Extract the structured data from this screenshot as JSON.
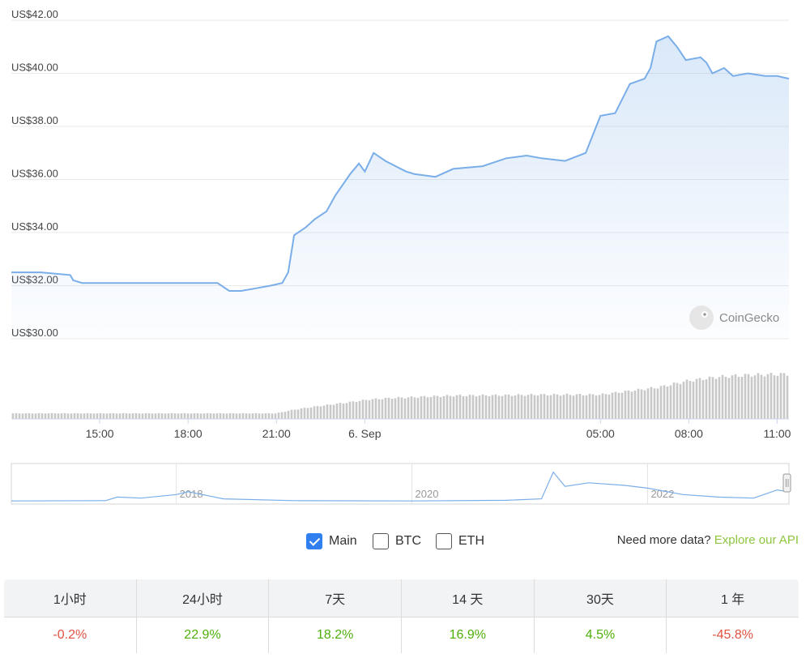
{
  "chart_data": {
    "type": "line",
    "price_axis": {
      "ticks": [
        "US$42.00",
        "US$40.00",
        "US$38.00",
        "US$36.00",
        "US$34.00",
        "US$32.00",
        "US$30.00"
      ],
      "values": [
        42,
        40,
        38,
        36,
        34,
        32,
        30
      ],
      "ylim": [
        30,
        42
      ]
    },
    "time_axis": {
      "labels": [
        "15:00",
        "18:00",
        "21:00",
        "6. Sep",
        "05:00",
        "08:00",
        "11:00"
      ],
      "hours": [
        3,
        6,
        9,
        12,
        20,
        23,
        26
      ],
      "xlim": [
        0,
        26.4
      ]
    },
    "series": [
      {
        "color": "#7aaee8",
        "x": [
          0,
          1,
          2,
          2.1,
          2.4,
          3,
          4,
          5,
          6,
          7,
          7.4,
          7.8,
          8.3,
          8.8,
          9.2,
          9.4,
          9.6,
          10,
          10.3,
          10.7,
          11,
          11.5,
          11.8,
          12,
          12.3,
          12.7,
          13.4,
          13.7,
          14.4,
          15,
          16,
          16.8,
          17.5,
          18,
          18.8,
          19.5,
          20,
          20.5,
          21,
          21.5,
          21.7,
          21.9,
          22.3,
          22.6,
          22.9,
          23.4,
          23.6,
          23.8,
          24.2,
          24.5,
          25,
          25.6,
          26,
          26.4
        ],
        "y": [
          32.5,
          32.5,
          32.4,
          32.2,
          32.1,
          32.1,
          32.1,
          32.1,
          32.1,
          32.1,
          31.8,
          31.8,
          31.9,
          32.0,
          32.1,
          32.5,
          33.9,
          34.2,
          34.5,
          34.8,
          35.4,
          36.2,
          36.6,
          36.3,
          37.0,
          36.7,
          36.3,
          36.2,
          36.1,
          36.4,
          36.5,
          36.8,
          36.9,
          36.8,
          36.7,
          37.0,
          38.4,
          38.5,
          39.6,
          39.8,
          40.2,
          41.2,
          41.4,
          41.0,
          40.5,
          40.6,
          40.4,
          40.0,
          40.2,
          39.9,
          40.0,
          39.9,
          39.9,
          39.8
        ]
      }
    ],
    "volume": {
      "x": [
        0,
        9.0,
        9.6,
        10.5,
        11.5,
        12.2,
        13,
        15,
        17,
        18,
        20,
        21,
        22,
        23,
        24,
        25,
        26.4
      ],
      "values": [
        0.12,
        0.12,
        0.2,
        0.28,
        0.36,
        0.42,
        0.45,
        0.5,
        0.51,
        0.52,
        0.52,
        0.6,
        0.68,
        0.82,
        0.9,
        0.94,
        0.96
      ]
    },
    "navigator": {
      "labels": [
        "2018",
        "2020",
        "2022"
      ],
      "years": [
        2018,
        2020,
        2022
      ],
      "xlim": [
        2016.6,
        2023.2
      ],
      "x": [
        2016.6,
        2017.4,
        2017.5,
        2017.7,
        2018.0,
        2018.1,
        2018.4,
        2019.0,
        2020.0,
        2020.8,
        2021.1,
        2021.2,
        2021.3,
        2021.5,
        2021.8,
        2022.0,
        2022.3,
        2022.6,
        2022.9,
        2023.1,
        2023.2
      ],
      "values": [
        0.04,
        0.05,
        0.15,
        0.12,
        0.22,
        0.3,
        0.1,
        0.05,
        0.04,
        0.06,
        0.1,
        0.85,
        0.45,
        0.55,
        0.48,
        0.4,
        0.22,
        0.15,
        0.12,
        0.35,
        0.3
      ]
    }
  },
  "watermark": "CoinGecko",
  "series_toggles": [
    {
      "label": "Main",
      "checked": true
    },
    {
      "label": "BTC",
      "checked": false
    },
    {
      "label": "ETH",
      "checked": false
    }
  ],
  "more_data": {
    "text": "Need more data?",
    "link": "Explore our API"
  },
  "performance": {
    "headers": [
      "1小时",
      "24小时",
      "7天",
      "14 天",
      "30天",
      "1 年"
    ],
    "values": [
      "-0.2%",
      "22.9%",
      "18.2%",
      "16.9%",
      "4.5%",
      "-45.8%"
    ],
    "signs": [
      "neg",
      "pos",
      "pos",
      "pos",
      "pos",
      "neg"
    ]
  }
}
